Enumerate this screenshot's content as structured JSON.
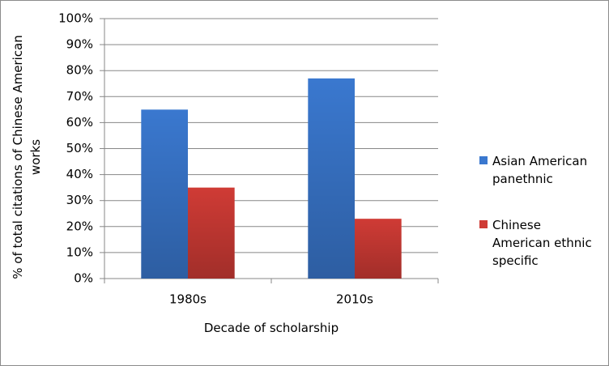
{
  "chart_data": {
    "type": "bar",
    "y_label": "% of total citations of Chinese American works",
    "x_label": "Decade of scholarship",
    "categories": [
      "1980s",
      "2010s"
    ],
    "series": [
      {
        "name": "Asian American panethnic",
        "color": "#3a78cf",
        "values": [
          65,
          77
        ]
      },
      {
        "name": "Chinese American ethnic specific",
        "color": "#cf3b35",
        "values": [
          35,
          23
        ]
      }
    ],
    "ylim": [
      0,
      100
    ],
    "yticks": [
      {
        "value": 0,
        "label": "0%"
      },
      {
        "value": 10,
        "label": "10%"
      },
      {
        "value": 20,
        "label": "20%"
      },
      {
        "value": 30,
        "label": "30%"
      },
      {
        "value": 40,
        "label": "40%"
      },
      {
        "value": 50,
        "label": "50%"
      },
      {
        "value": 60,
        "label": "60%"
      },
      {
        "value": 70,
        "label": "70%"
      },
      {
        "value": 80,
        "label": "80%"
      },
      {
        "value": 90,
        "label": "90%"
      },
      {
        "value": 100,
        "label": "100%"
      }
    ],
    "grid": true,
    "legend": "right"
  }
}
